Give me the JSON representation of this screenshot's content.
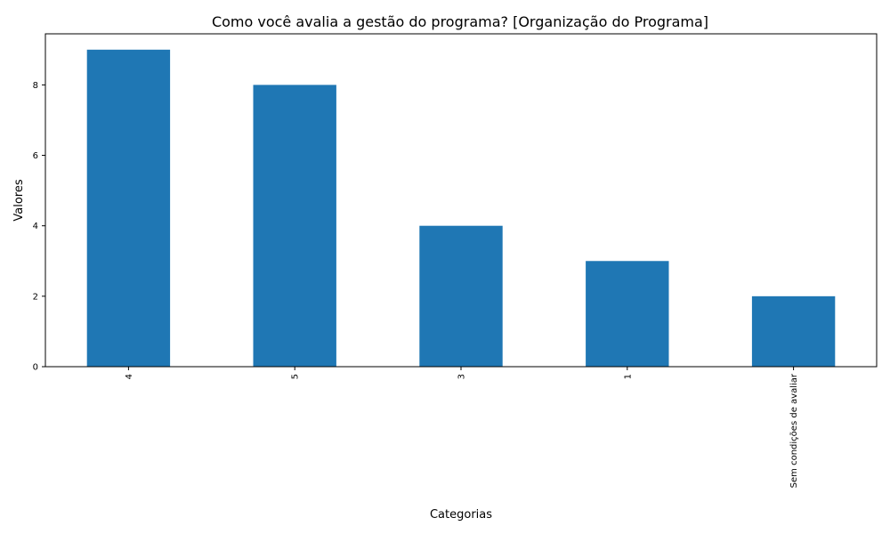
{
  "chart_data": {
    "type": "bar",
    "title": "Como você avalia a gestão do programa? [Organização do Programa]",
    "xlabel": "Categorias",
    "ylabel": "Valores",
    "categories": [
      "4",
      "5",
      "3",
      "1",
      "Sem condições de avaliar"
    ],
    "values": [
      9,
      8,
      4,
      3,
      2
    ],
    "ylim": [
      0,
      9.45
    ],
    "yticks": [
      "0",
      "2",
      "4",
      "6",
      "8"
    ],
    "grid": false,
    "legend": "none",
    "bar_color": "#1f77b4"
  }
}
